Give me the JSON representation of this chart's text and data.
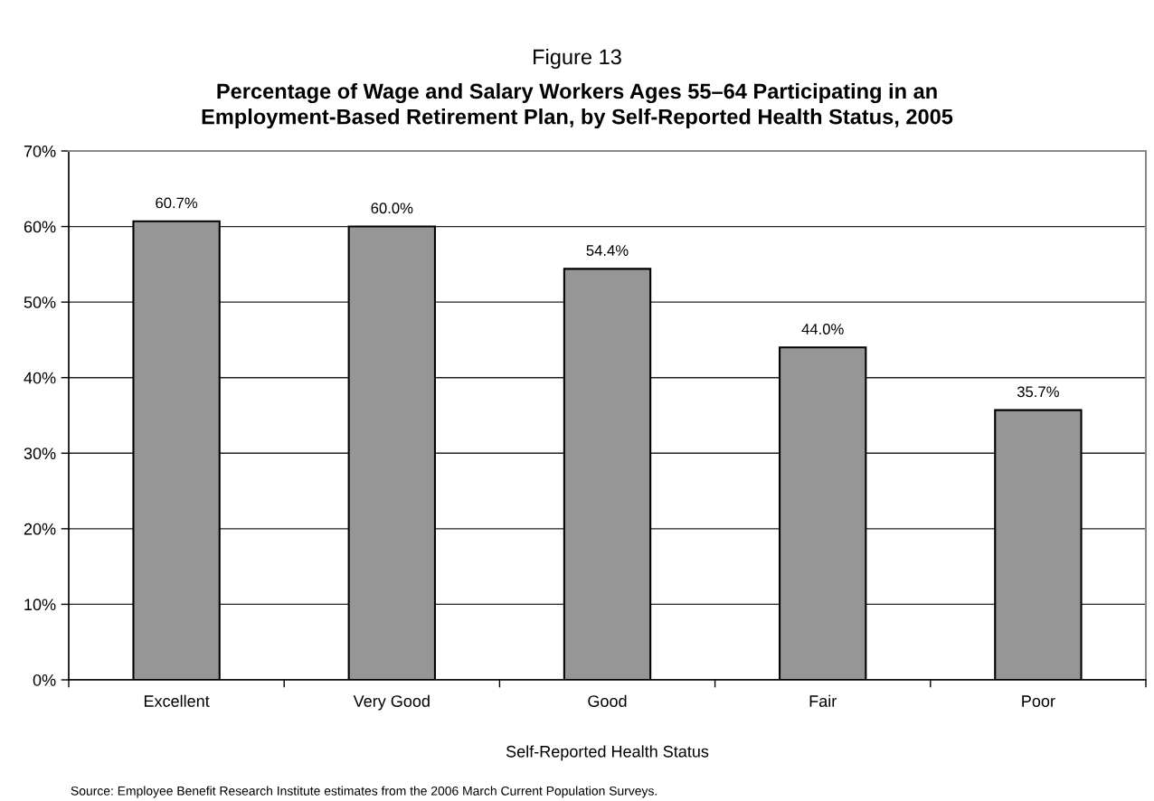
{
  "chart_data": {
    "type": "bar",
    "title": "Figure 13",
    "subtitle": "Percentage of Wage and Salary Workers Ages 55–64 Participating in an\nEmployment-Based Retirement Plan, by Self-Reported Health Status, 2005",
    "xlabel": "Self-Reported Health Status",
    "categories": [
      "Excellent",
      "Very Good",
      "Good",
      "Fair",
      "Poor"
    ],
    "values": [
      60.7,
      60.0,
      54.4,
      44.0,
      35.7
    ],
    "value_labels": [
      "60.7%",
      "60.0%",
      "54.4%",
      "44.0%",
      "35.7%"
    ],
    "color": "#969696",
    "ylim": [
      0,
      70
    ],
    "yticks": [
      {
        "value": 0,
        "label": "0%"
      },
      {
        "value": 10,
        "label": "10%"
      },
      {
        "value": 20,
        "label": "20%"
      },
      {
        "value": 30,
        "label": "30%"
      },
      {
        "value": 40,
        "label": "40%"
      },
      {
        "value": 50,
        "label": "50%"
      },
      {
        "value": 60,
        "label": "60%"
      },
      {
        "value": 70,
        "label": "70%"
      }
    ],
    "grid": "y",
    "annotations": [
      "Source: Employee Benefit Research Institute estimates from the 2006 March Current Population Surveys."
    ]
  }
}
